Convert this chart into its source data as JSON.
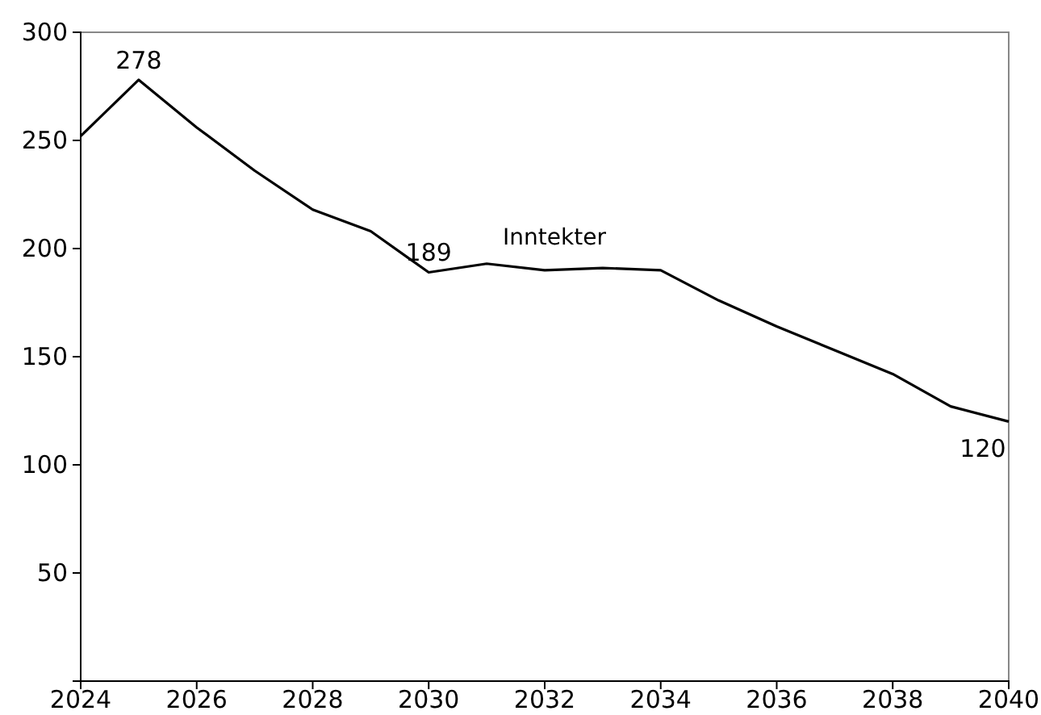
{
  "chart_data": {
    "type": "line",
    "x": [
      2024,
      2025,
      2026,
      2027,
      2028,
      2029,
      2030,
      2031,
      2032,
      2033,
      2034,
      2035,
      2036,
      2037,
      2038,
      2039,
      2040
    ],
    "series": [
      {
        "name": "Inntekter",
        "color": "#000000",
        "values": [
          252,
          278,
          256,
          236,
          218,
          208,
          189,
          193,
          190,
          191,
          190,
          176,
          164,
          153,
          142,
          127,
          120
        ],
        "value_labels": [
          null,
          "278",
          null,
          null,
          null,
          null,
          "189",
          null,
          null,
          null,
          null,
          null,
          null,
          null,
          null,
          null,
          "120"
        ]
      }
    ],
    "xlim": [
      2024,
      2040
    ],
    "xticks": [
      2024,
      2026,
      2028,
      2030,
      2032,
      2034,
      2036,
      2038,
      2040
    ],
    "ylim": [
      0,
      300
    ],
    "yticks": [
      {
        "value": 0,
        "label": null
      },
      50,
      100,
      150,
      200,
      250,
      300
    ],
    "grid": false,
    "legend": false,
    "marker": "none",
    "line_style": "solid"
  }
}
